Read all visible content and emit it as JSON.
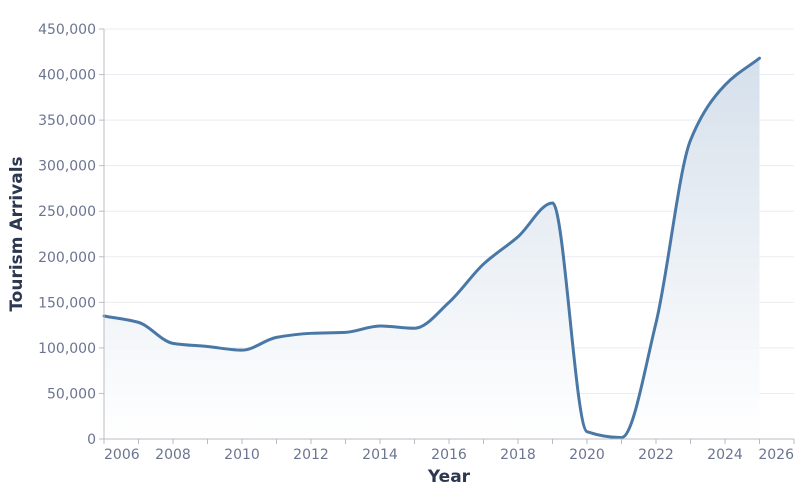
{
  "chart_data": {
    "type": "area",
    "title": "",
    "xlabel": "Year",
    "ylabel": "Tourism Arrivals",
    "x": [
      2006,
      2007,
      2008,
      2009,
      2010,
      2011,
      2012,
      2013,
      2014,
      2015,
      2016,
      2017,
      2018,
      2019,
      2020,
      2021,
      2022,
      2023,
      2024,
      2025
    ],
    "series": [
      {
        "name": "Tourism Arrivals",
        "values": [
          135000,
          128000,
          105000,
          101500,
          97500,
          111500,
          116000,
          117000,
          124000,
          121500,
          150000,
          192000,
          222000,
          259000,
          8000,
          1500,
          127500,
          328000,
          388500,
          418000
        ]
      }
    ],
    "xlim": [
      2006,
      2026
    ],
    "ylim": [
      0,
      450000
    ],
    "x_ticks": [
      2006,
      2007,
      2008,
      2009,
      2010,
      2011,
      2012,
      2013,
      2014,
      2015,
      2016,
      2017,
      2018,
      2019,
      2020,
      2021,
      2022,
      2023,
      2024,
      2025,
      2026
    ],
    "x_tick_labels": [
      "2006",
      "2008",
      "2010",
      "2012",
      "2014",
      "2016",
      "2018",
      "2020",
      "2022",
      "2024",
      "2026"
    ],
    "y_ticks": [
      0,
      50000,
      100000,
      150000,
      200000,
      250000,
      300000,
      350000,
      400000,
      450000
    ],
    "y_tick_labels": [
      "0",
      "50,000",
      "100,000",
      "150,000",
      "200,000",
      "250,000",
      "300,000",
      "350,000",
      "400,000",
      "450,000"
    ],
    "grid": {
      "horizontal": true,
      "vertical": false
    },
    "legend": null,
    "colors": {
      "line": "#4a78a6",
      "area_top": "#d3deea",
      "area_bottom": "#ffffff"
    }
  }
}
